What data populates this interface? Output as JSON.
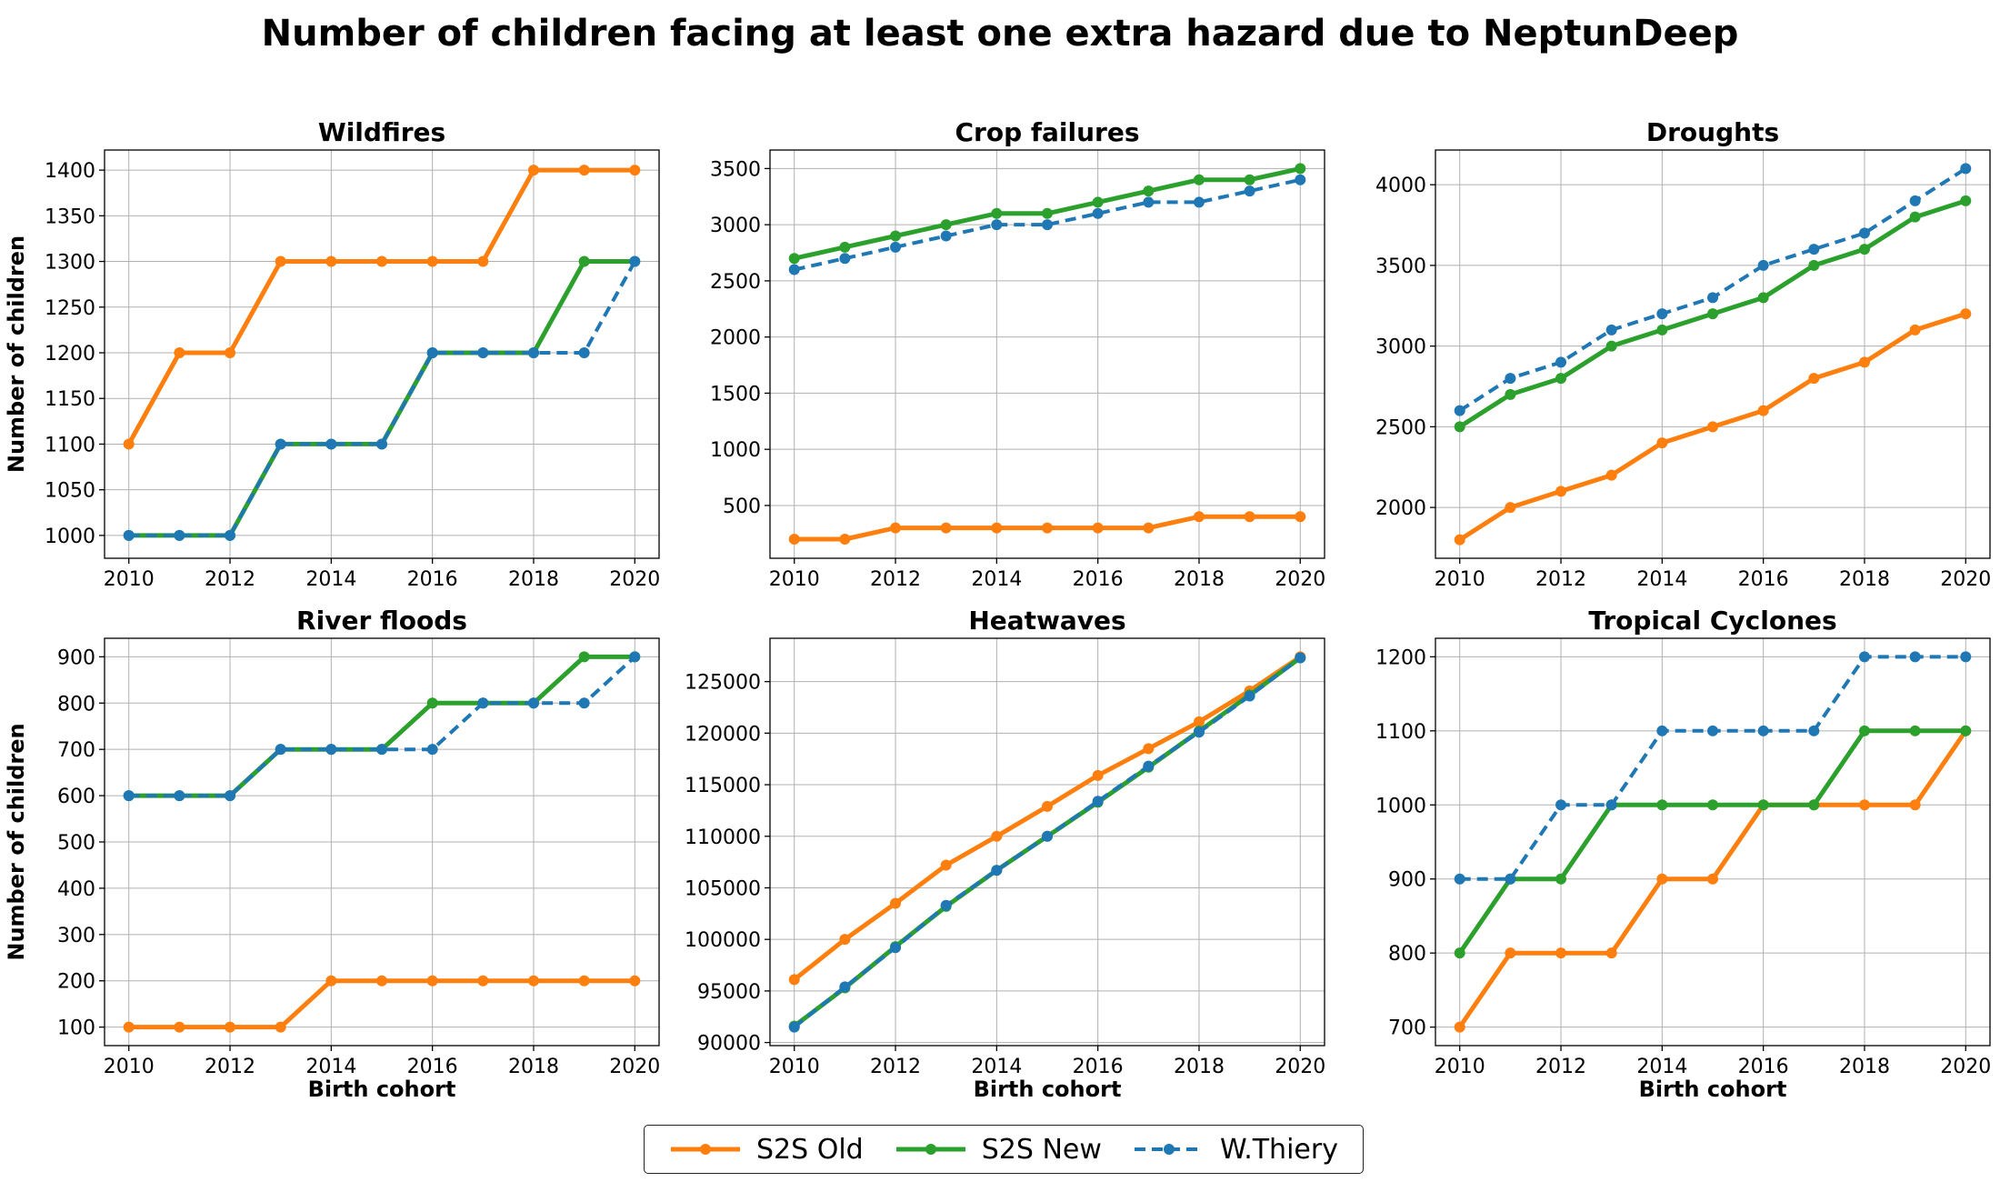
{
  "title": "Number of children facing at least one extra hazard due to NeptunDeep",
  "colors": {
    "S2S Old": "#ff7f0e",
    "S2S New": "#2ca02c",
    "W.Thiery": "#1f77b4"
  },
  "chart_data": [
    {
      "type": "line",
      "title": "Wildfires",
      "xlabel": "",
      "ylabel": "Number of children",
      "x": [
        2010,
        2011,
        2012,
        2013,
        2014,
        2015,
        2016,
        2017,
        2018,
        2019,
        2020
      ],
      "xticks": [
        "2010",
        "2012",
        "2014",
        "2016",
        "2018",
        "2020"
      ],
      "ylim": [
        975,
        1422
      ],
      "yticks": [
        1000,
        1050,
        1100,
        1150,
        1200,
        1250,
        1300,
        1350,
        1400
      ],
      "grid": true,
      "series": [
        {
          "name": "S2S Old",
          "values": [
            1100,
            1200,
            1200,
            1300,
            1300,
            1300,
            1300,
            1300,
            1400,
            1400,
            1400
          ]
        },
        {
          "name": "S2S New",
          "values": [
            1000,
            1000,
            1000,
            1100,
            1100,
            1100,
            1200,
            1200,
            1200,
            1300,
            1300
          ]
        },
        {
          "name": "W.Thiery",
          "values": [
            1000,
            1000,
            1000,
            1100,
            1100,
            1100,
            1200,
            1200,
            1200,
            1200,
            1300
          ]
        }
      ]
    },
    {
      "type": "line",
      "title": "Crop failures",
      "xlabel": "",
      "ylabel": "",
      "x": [
        2010,
        2011,
        2012,
        2013,
        2014,
        2015,
        2016,
        2017,
        2018,
        2019,
        2020
      ],
      "xticks": [
        "2010",
        "2012",
        "2014",
        "2016",
        "2018",
        "2020"
      ],
      "ylim": [
        30,
        3665
      ],
      "yticks": [
        500,
        1000,
        1500,
        2000,
        2500,
        3000,
        3500
      ],
      "grid": true,
      "series": [
        {
          "name": "S2S Old",
          "values": [
            200,
            200,
            300,
            300,
            300,
            300,
            300,
            300,
            400,
            400,
            400
          ]
        },
        {
          "name": "S2S New",
          "values": [
            2700,
            2800,
            2900,
            3000,
            3100,
            3100,
            3200,
            3300,
            3400,
            3400,
            3500
          ]
        },
        {
          "name": "W.Thiery",
          "values": [
            2600,
            2700,
            2800,
            2900,
            3000,
            3000,
            3100,
            3200,
            3200,
            3300,
            3400
          ]
        }
      ]
    },
    {
      "type": "line",
      "title": "Droughts",
      "xlabel": "",
      "ylabel": "",
      "x": [
        2010,
        2011,
        2012,
        2013,
        2014,
        2015,
        2016,
        2017,
        2018,
        2019,
        2020
      ],
      "xticks": [
        "2010",
        "2012",
        "2014",
        "2016",
        "2018",
        "2020"
      ],
      "ylim": [
        1685,
        4215
      ],
      "yticks": [
        2000,
        2500,
        3000,
        3500,
        4000
      ],
      "grid": true,
      "series": [
        {
          "name": "S2S Old",
          "values": [
            1800,
            2000,
            2100,
            2200,
            2400,
            2500,
            2600,
            2800,
            2900,
            3100,
            3200
          ]
        },
        {
          "name": "S2S New",
          "values": [
            2500,
            2700,
            2800,
            3000,
            3100,
            3200,
            3300,
            3500,
            3600,
            3800,
            3900
          ]
        },
        {
          "name": "W.Thiery",
          "values": [
            2600,
            2800,
            2900,
            3100,
            3200,
            3300,
            3500,
            3600,
            3700,
            3900,
            4100
          ]
        }
      ]
    },
    {
      "type": "line",
      "title": "River floods",
      "xlabel": "Birth cohort",
      "ylabel": "Number of children",
      "x": [
        2010,
        2011,
        2012,
        2013,
        2014,
        2015,
        2016,
        2017,
        2018,
        2019,
        2020
      ],
      "xticks": [
        "2010",
        "2012",
        "2014",
        "2016",
        "2018",
        "2020"
      ],
      "ylim": [
        60,
        940
      ],
      "yticks": [
        100,
        200,
        300,
        400,
        500,
        600,
        700,
        800,
        900
      ],
      "grid": true,
      "series": [
        {
          "name": "S2S Old",
          "values": [
            100,
            100,
            100,
            100,
            200,
            200,
            200,
            200,
            200,
            200,
            200
          ]
        },
        {
          "name": "S2S New",
          "values": [
            600,
            600,
            600,
            700,
            700,
            700,
            800,
            800,
            800,
            900,
            900
          ]
        },
        {
          "name": "W.Thiery",
          "values": [
            600,
            600,
            600,
            700,
            700,
            700,
            700,
            800,
            800,
            800,
            900
          ]
        }
      ]
    },
    {
      "type": "line",
      "title": "Heatwaves",
      "xlabel": "Birth cohort",
      "ylabel": "",
      "x": [
        2010,
        2011,
        2012,
        2013,
        2014,
        2015,
        2016,
        2017,
        2018,
        2019,
        2020
      ],
      "xticks": [
        "2010",
        "2012",
        "2014",
        "2016",
        "2018",
        "2020"
      ],
      "ylim": [
        89700,
        129200
      ],
      "yticks": [
        90000,
        95000,
        100000,
        105000,
        110000,
        115000,
        120000,
        125000
      ],
      "grid": true,
      "series": [
        {
          "name": "S2S Old",
          "values": [
            96100,
            100000,
            103500,
            107200,
            110000,
            112900,
            115900,
            118500,
            121100,
            124100,
            127400
          ]
        },
        {
          "name": "S2S New",
          "values": [
            91600,
            95300,
            99300,
            103200,
            106700,
            110000,
            113300,
            116700,
            120200,
            123700,
            127300
          ]
        },
        {
          "name": "W.Thiery",
          "values": [
            91500,
            95400,
            99200,
            103300,
            106700,
            110000,
            113400,
            116800,
            120100,
            123600,
            127300
          ]
        }
      ]
    },
    {
      "type": "line",
      "title": "Tropical Cyclones",
      "xlabel": "Birth cohort",
      "ylabel": "",
      "x": [
        2010,
        2011,
        2012,
        2013,
        2014,
        2015,
        2016,
        2017,
        2018,
        2019,
        2020
      ],
      "xticks": [
        "2010",
        "2012",
        "2014",
        "2016",
        "2018",
        "2020"
      ],
      "ylim": [
        675,
        1225
      ],
      "yticks": [
        700,
        800,
        900,
        1000,
        1100,
        1200
      ],
      "grid": true,
      "series": [
        {
          "name": "S2S Old",
          "values": [
            700,
            800,
            800,
            800,
            900,
            900,
            1000,
            1000,
            1000,
            1000,
            1100
          ]
        },
        {
          "name": "S2S New",
          "values": [
            800,
            900,
            900,
            1000,
            1000,
            1000,
            1000,
            1000,
            1100,
            1100,
            1100
          ]
        },
        {
          "name": "W.Thiery",
          "values": [
            900,
            900,
            1000,
            1000,
            1100,
            1100,
            1100,
            1100,
            1200,
            1200,
            1200
          ]
        }
      ]
    }
  ],
  "legend": {
    "placement": "bottom-center",
    "items": [
      {
        "label": "S2S Old",
        "style": "solid"
      },
      {
        "label": "S2S New",
        "style": "solid"
      },
      {
        "label": "W.Thiery",
        "style": "dashed"
      }
    ]
  }
}
